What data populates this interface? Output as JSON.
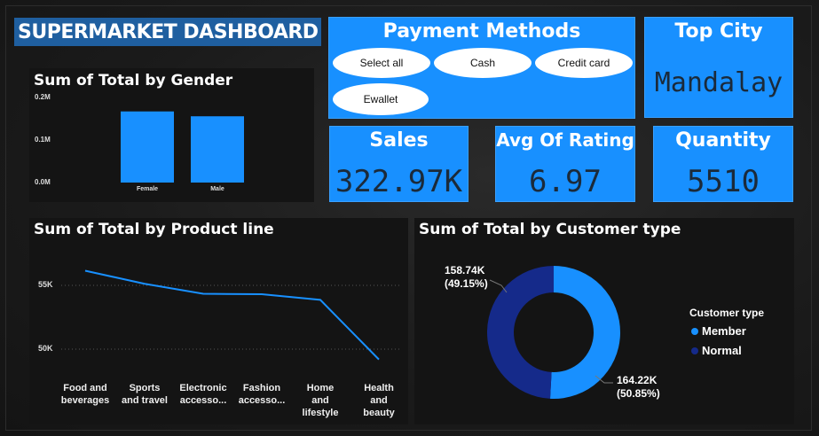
{
  "dashboard": {
    "title": "SUPERMARKET DASHBOARD"
  },
  "payment_methods": {
    "title": "Payment Methods",
    "options": [
      "Select all",
      "Cash",
      "Credit card",
      "Ewallet"
    ]
  },
  "top_city": {
    "title": "Top City",
    "value": "Mandalay"
  },
  "kpis": {
    "sales": {
      "title": "Sales",
      "value": "322.97K"
    },
    "avg_rating": {
      "title": "Avg Of Rating",
      "value": "6.97"
    },
    "quantity": {
      "title": "Quantity",
      "value": "5510"
    }
  },
  "colors": {
    "accent": "#1890ff",
    "member": "#1890ff",
    "normal": "#152a8a",
    "panel": "#141414"
  },
  "chart_data": [
    {
      "type": "bar",
      "title": "Sum of Total by Gender",
      "categories": [
        "Female",
        "Male"
      ],
      "values": [
        0.1672,
        0.1558
      ],
      "y_ticks": [
        "0.0M",
        "0.1M",
        "0.2M"
      ],
      "ylim": [
        0,
        0.2
      ],
      "grid": false
    },
    {
      "type": "line",
      "title": "Sum of Total by Product line",
      "categories": [
        "Food and beverages",
        "Sports and travel",
        "Electronic accesso...",
        "Fashion accesso...",
        "Home and lifestyle",
        "Health and beauty"
      ],
      "values": [
        56144,
        55123,
        54338,
        54306,
        53862,
        49193
      ],
      "y_ticks": [
        "50K",
        "55K"
      ],
      "ylim": [
        48000,
        57500
      ],
      "grid": true
    },
    {
      "type": "pie",
      "title": "Sum of Total by Customer type",
      "legend_title": "Customer type",
      "series": [
        {
          "name": "Member",
          "value": 164.22,
          "label": "164.22K",
          "percent": "(50.85%)"
        },
        {
          "name": "Normal",
          "value": 158.74,
          "label": "158.74K",
          "percent": "(49.15%)"
        }
      ],
      "legend_position": "right"
    }
  ]
}
